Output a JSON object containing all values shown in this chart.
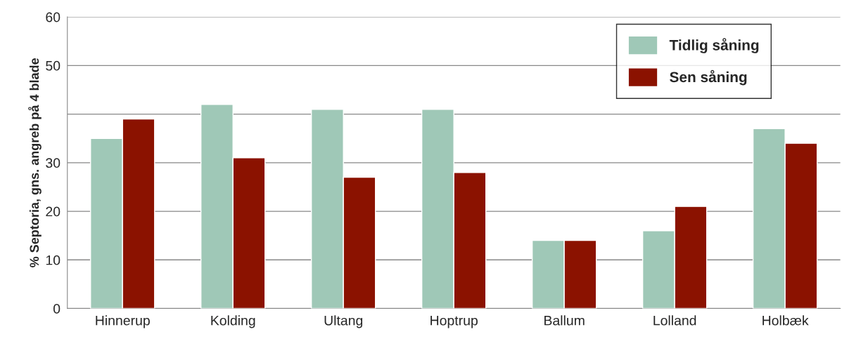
{
  "chart_data": {
    "type": "bar",
    "ylabel": "% Septoria, gns. angreb på 4 blade",
    "categories": [
      "Hinnerup",
      "Kolding",
      "Ultang",
      "Hoptrup",
      "Ballum",
      "Lolland",
      "Holbæk"
    ],
    "series": [
      {
        "name": "Tidlig såning",
        "color": "#9fc8b7",
        "values": [
          35,
          42,
          41,
          41,
          14,
          16,
          37
        ]
      },
      {
        "name": "Sen såning",
        "color": "#8b1200",
        "values": [
          39,
          31,
          27,
          28,
          14,
          21,
          34
        ]
      }
    ],
    "ylim": [
      0,
      60
    ],
    "yticks": [
      0,
      10,
      20,
      30,
      {
        "value": 40,
        "label": null
      },
      50,
      60
    ],
    "grid": "y",
    "legend": "top right"
  }
}
